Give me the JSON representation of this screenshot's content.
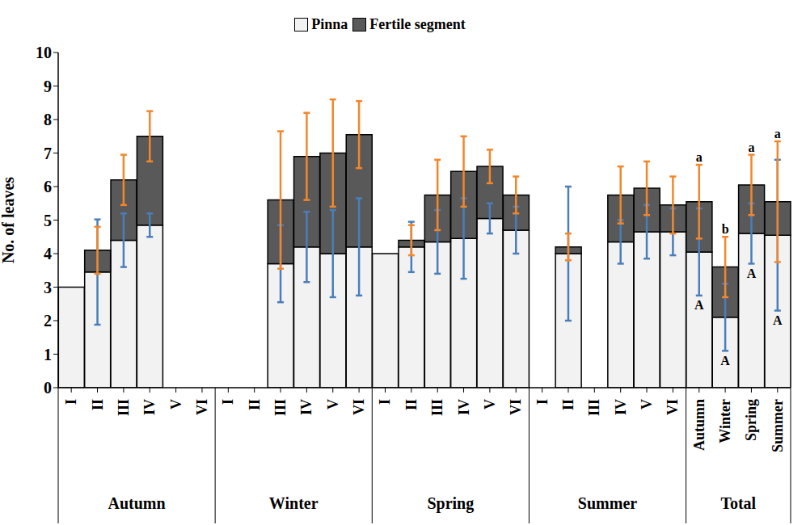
{
  "chart_data": {
    "type": "bar",
    "stacked": true,
    "y_label": "No. of leaves",
    "ylim": [
      0,
      10
    ],
    "yticks": [
      0,
      1,
      2,
      3,
      4,
      5,
      6,
      7,
      8,
      9,
      10
    ],
    "grid": false,
    "legend": "top",
    "groups": [
      {
        "name": "Autumn",
        "categories": [
          "I",
          "II",
          "III",
          "IV",
          "V",
          "VI"
        ]
      },
      {
        "name": "Winter",
        "categories": [
          "I",
          "II",
          "III",
          "IV",
          "V",
          "VI"
        ]
      },
      {
        "name": "Spring",
        "categories": [
          "I",
          "II",
          "III",
          "IV",
          "V",
          "VI"
        ]
      },
      {
        "name": "Summer",
        "categories": [
          "I",
          "II",
          "III",
          "IV",
          "V",
          "VI"
        ]
      },
      {
        "name": "Total",
        "categories": [
          "Autumn",
          "Winter",
          "Spring",
          "Summer"
        ]
      }
    ],
    "series": [
      {
        "name": "Pinna",
        "color": "#f2f2f2",
        "error_color": "#4a7ebb",
        "values": [
          3.0,
          3.45,
          4.4,
          4.85,
          null,
          null,
          null,
          null,
          3.7,
          4.2,
          4.0,
          4.2,
          4.0,
          4.2,
          4.35,
          4.45,
          5.05,
          4.7,
          null,
          4.0,
          null,
          4.35,
          4.65,
          4.65,
          4.05,
          2.1,
          4.6,
          4.55
        ],
        "error": [
          0,
          1.57,
          0.8,
          0.35,
          null,
          null,
          null,
          null,
          1.15,
          1.05,
          1.3,
          1.45,
          0,
          0.75,
          0.95,
          1.2,
          0.45,
          0.7,
          null,
          2.0,
          null,
          0.65,
          0.8,
          0.7,
          1.3,
          1.0,
          0.9,
          2.25
        ],
        "significance_letters": [
          null,
          null,
          null,
          null,
          null,
          null,
          null,
          null,
          null,
          null,
          null,
          null,
          null,
          null,
          null,
          null,
          null,
          null,
          null,
          null,
          null,
          null,
          null,
          null,
          "A",
          "A",
          "A",
          "A"
        ]
      },
      {
        "name": "Fertile segment",
        "color": "#595959",
        "error_color": "#f4862a",
        "values": [
          0,
          0.65,
          1.8,
          2.65,
          null,
          null,
          null,
          null,
          1.9,
          2.7,
          3.0,
          3.35,
          0,
          0.2,
          1.4,
          2.0,
          1.55,
          1.05,
          null,
          0.2,
          null,
          1.4,
          1.3,
          0.8,
          1.5,
          1.5,
          1.45,
          1.0
        ],
        "error": [
          0,
          0.7,
          0.75,
          0.75,
          null,
          null,
          null,
          null,
          2.05,
          1.3,
          1.6,
          1.0,
          0,
          0.45,
          1.05,
          1.05,
          0.5,
          0.55,
          null,
          0.4,
          null,
          0.85,
          0.8,
          0.85,
          1.1,
          0.9,
          0.9,
          1.8
        ],
        "significance_letters": [
          null,
          null,
          null,
          null,
          null,
          null,
          null,
          null,
          null,
          null,
          null,
          null,
          null,
          null,
          null,
          null,
          null,
          null,
          null,
          null,
          null,
          null,
          null,
          null,
          "a",
          "b",
          "a",
          "a"
        ]
      }
    ]
  }
}
